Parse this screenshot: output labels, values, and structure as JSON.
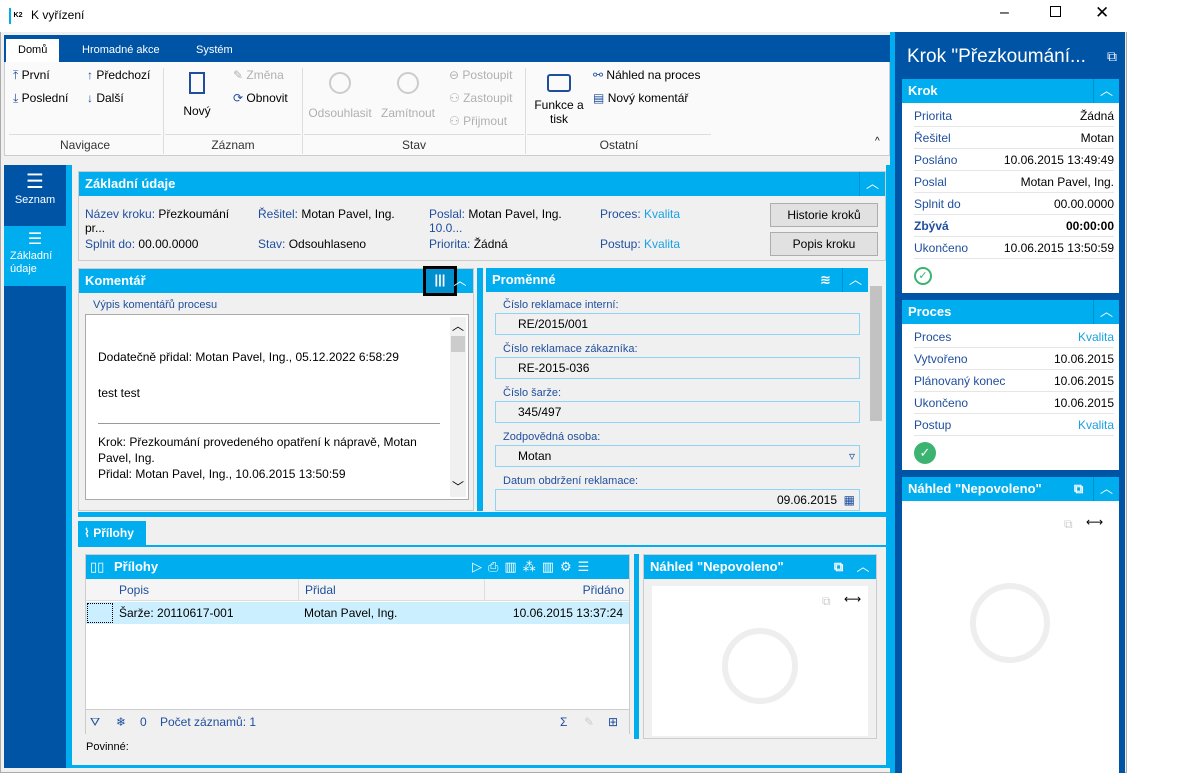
{
  "window": {
    "title": "K vyřízení",
    "logo": "K2"
  },
  "ribbon": {
    "tabs": [
      "Domů",
      "Hromadné akce",
      "Systém"
    ],
    "nav": {
      "first": "První",
      "prev": "Předchozí",
      "last": "Poslední",
      "next": "Další",
      "group": "Navigace"
    },
    "record": {
      "new": "Nový",
      "change": "Změna",
      "refresh": "Obnovit",
      "group": "Záznam"
    },
    "state": {
      "approve": "Odsouhlasit",
      "reject": "Zamítnout",
      "advance": "Postoupit",
      "substitute": "Zastoupit",
      "accept": "Přijmout",
      "group": "Stav"
    },
    "other": {
      "print": "Funkce a tisk",
      "preview": "Náhled na proces",
      "comment": "Nový komentář",
      "group": "Ostatní"
    }
  },
  "left_nav": [
    {
      "label": "Seznam",
      "icon": "menu-icon"
    },
    {
      "label": "Základní údaje",
      "icon": "list-icon"
    }
  ],
  "basic": {
    "title": "Základní údaje",
    "fields": [
      {
        "k": "Název kroku:",
        "v": "Přezkoumání pr..."
      },
      {
        "k": "Řešitel:",
        "v": "Motan Pavel, Ing."
      },
      {
        "k": "Poslal:",
        "v": "Motan Pavel, Ing.",
        "v2": "10.0..."
      },
      {
        "k": "Proces:",
        "v": "Kvalita"
      },
      {
        "k": "Splnit do:",
        "v": "00.00.0000"
      },
      {
        "k": "Stav:",
        "v": "Odsouhlaseno"
      },
      {
        "k": "Priorita:",
        "v": "Žádná"
      },
      {
        "k": "Postup:",
        "v": "Kvalita"
      }
    ],
    "btn_history": "Historie kroků",
    "btn_desc": "Popis kroku"
  },
  "comment": {
    "title": "Komentář",
    "sublabel": "Výpis komentářů procesu",
    "lines": [
      "Dodatečně přidal: Motan Pavel, Ing., 05.12.2022 6:58:29",
      "test test",
      "Krok: Přezkoumání provedeného opatření k nápravě, Motan Pavel, Ing.",
      "Přidal: Motan Pavel, Ing., 10.06.2015 13:50:59"
    ]
  },
  "vars": {
    "title": "Proměnné",
    "fields": [
      {
        "k": "Číslo reklamace interní:",
        "v": "RE/2015/001"
      },
      {
        "k": "Číslo reklamace zákazníka:",
        "v": "RE-2015-036"
      },
      {
        "k": "Číslo šarže:",
        "v": "345/497"
      },
      {
        "k": "Zodpovědná osoba:",
        "v": "Motan"
      },
      {
        "k": "Datum obdržení reklamace:",
        "v": "09.06.2015"
      }
    ]
  },
  "attach_tab": "Přílohy",
  "attachments": {
    "title": "Přílohy",
    "columns": [
      "Popis",
      "Přidal",
      "Přidáno"
    ],
    "rows": [
      [
        "Šarže: 20110617-001",
        "Motan Pavel, Ing.",
        "10.06.2015 13:37:24"
      ]
    ],
    "filter_count": "0",
    "record_count": "Počet záznamů: 1",
    "required": "Povinné:"
  },
  "preview": {
    "title": "Náhled \"Nepovoleno\""
  },
  "right": {
    "title": "Krok \"Přezkoumání...",
    "step": {
      "title": "Krok",
      "rows": [
        {
          "k": "Priorita",
          "v": "Žádná"
        },
        {
          "k": "Řešitel",
          "v": "Motan"
        },
        {
          "k": "Posláno",
          "v": "10.06.2015 13:49:49"
        },
        {
          "k": "Poslal",
          "v": "Motan Pavel, Ing."
        },
        {
          "k": "Splnit do",
          "v": "00.00.0000"
        },
        {
          "k": "Zbývá",
          "v": "00:00:00"
        },
        {
          "k": "Ukončeno",
          "v": "10.06.2015 13:50:59"
        }
      ]
    },
    "process": {
      "title": "Proces",
      "rows": [
        {
          "k": "Proces",
          "v": "Kvalita"
        },
        {
          "k": "Vytvořeno",
          "v": "10.06.2015"
        },
        {
          "k": "Plánovaný konec",
          "v": "10.06.2015"
        },
        {
          "k": "Ukončeno",
          "v": "10.06.2015"
        },
        {
          "k": "Postup",
          "v": "Kvalita"
        }
      ]
    },
    "preview_title": "Náhled \"Nepovoleno\""
  },
  "colors": {
    "dark_blue": "#0054a6",
    "light_blue": "#00aeef",
    "label": "#1f4e9e",
    "link": "#1ba1e2",
    "ok": "#3cb371"
  }
}
